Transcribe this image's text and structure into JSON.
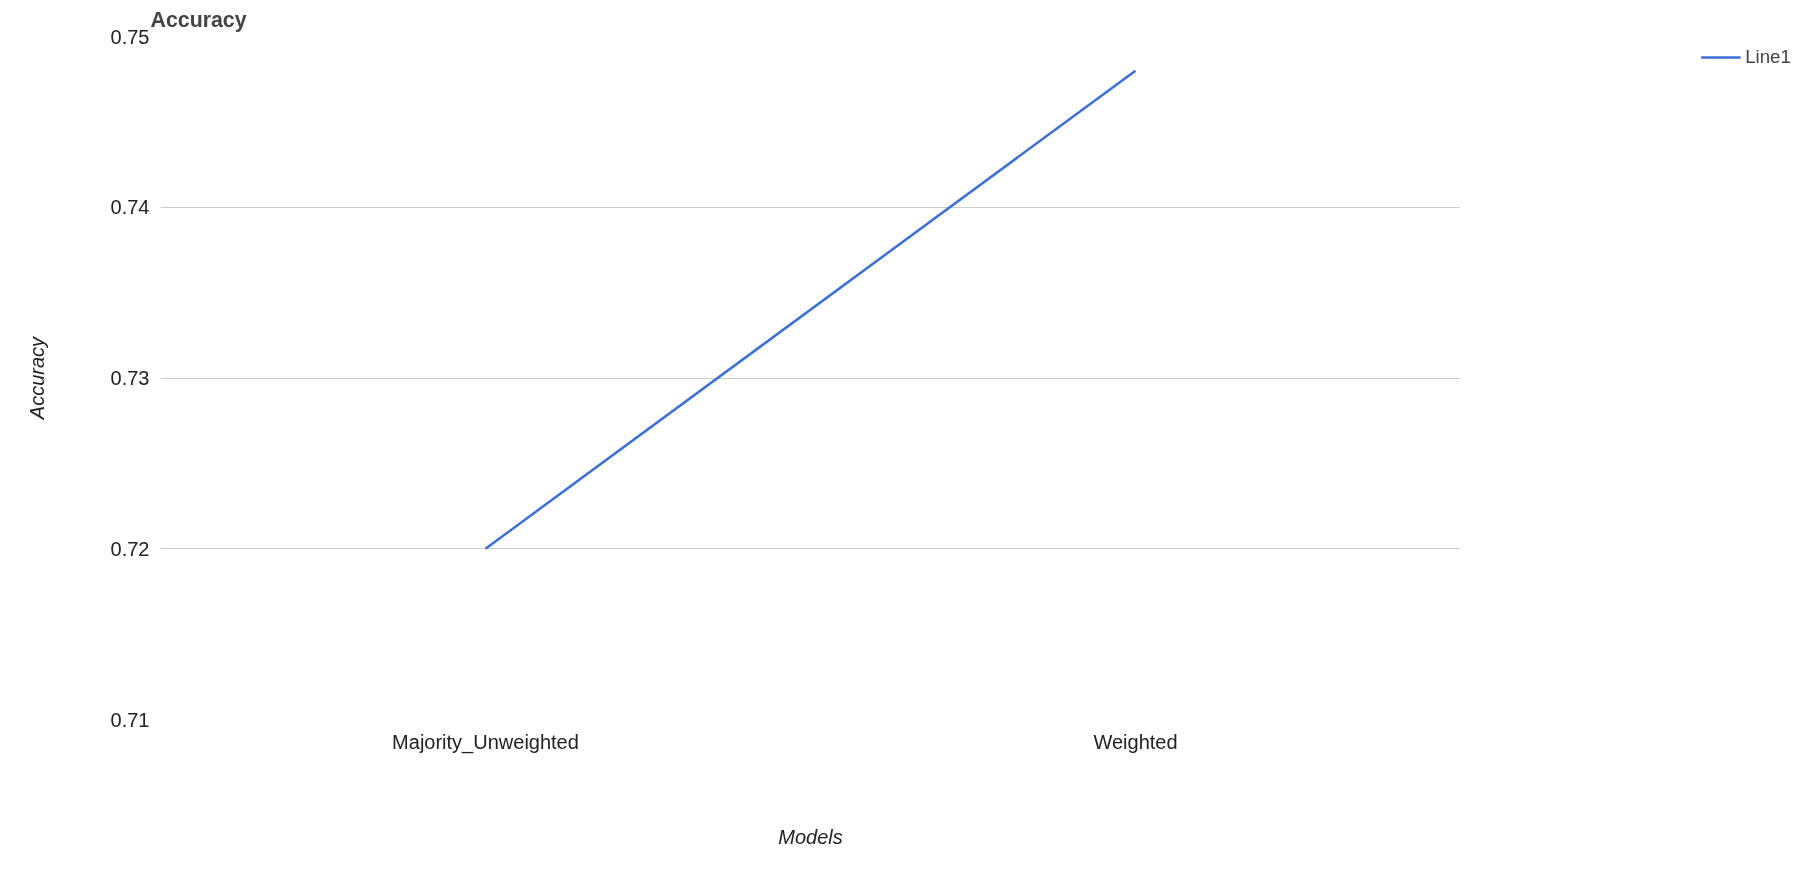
{
  "chart_data": {
    "type": "line",
    "title": "Accuracy",
    "xlabel": "Models",
    "ylabel": "Accuracy",
    "categories": [
      "Majority_Unweighted",
      "Weighted"
    ],
    "series": [
      {
        "name": "Line1",
        "color": "#3c6fd5",
        "values": [
          0.72,
          0.748
        ]
      }
    ],
    "ylim": [
      0.71,
      0.75
    ],
    "yticks": [
      0.71,
      0.72,
      0.73,
      0.74,
      0.75
    ],
    "grid": "y",
    "legend": "top right",
    "marker": "none"
  }
}
